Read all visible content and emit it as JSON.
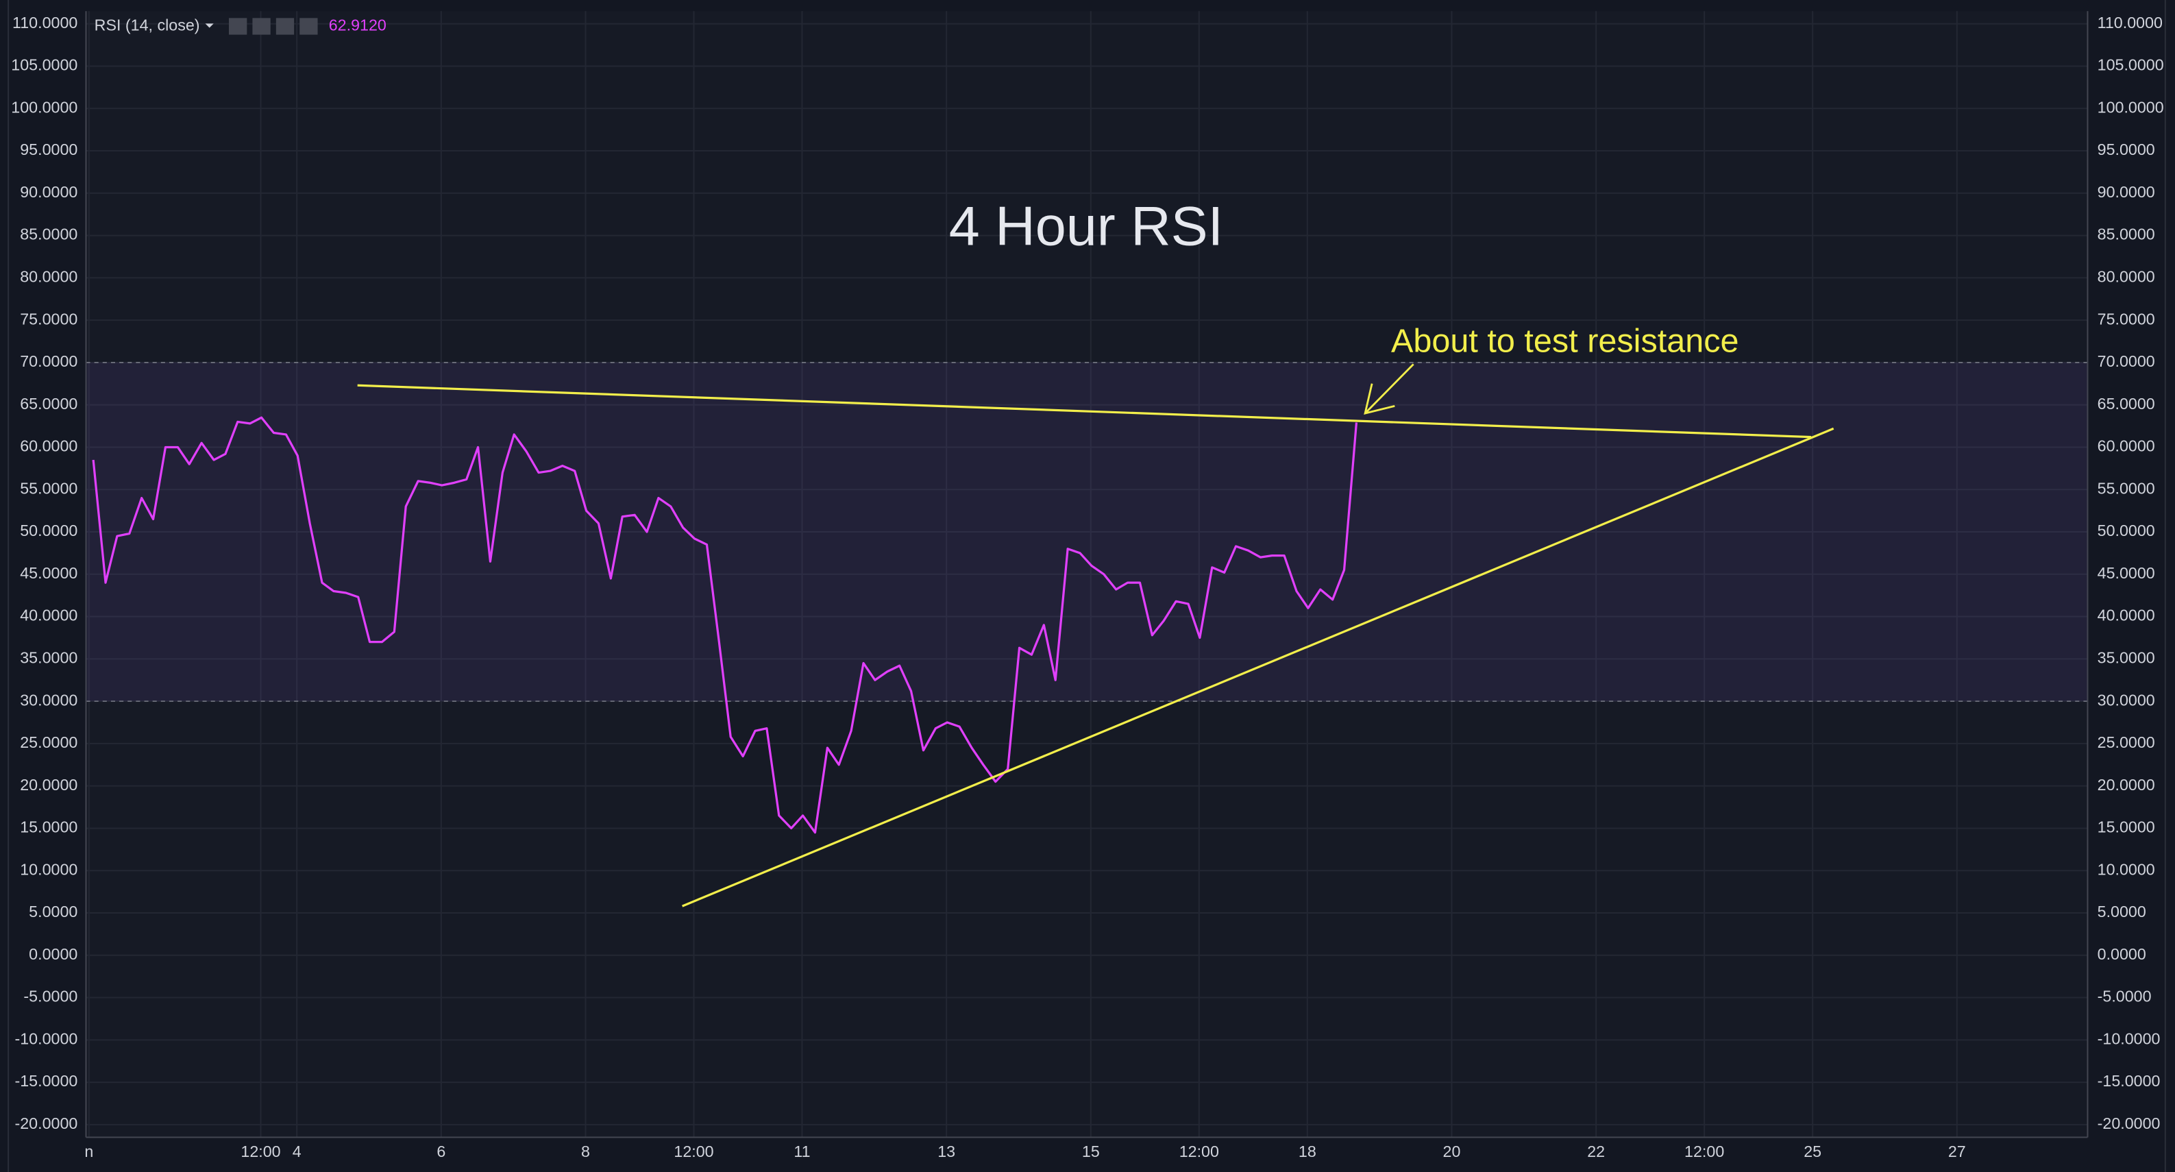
{
  "chart_data": {
    "type": "line",
    "title": "4 Hour RSI",
    "legend_value": "62.9120",
    "series": [
      {
        "name": "RSI (14, close)",
        "color": "#e040fb",
        "x": [
          1.18,
          1.35,
          1.51,
          1.68,
          1.85,
          2.01,
          2.18,
          2.35,
          2.51,
          2.68,
          2.85,
          3.01,
          3.18,
          3.35,
          3.51,
          3.68,
          3.85,
          4.01,
          4.18,
          4.35,
          4.51,
          4.68,
          4.85,
          5.01,
          5.18,
          5.35,
          5.51,
          5.68,
          5.85,
          6.01,
          6.18,
          6.35,
          6.51,
          6.68,
          6.85,
          7.01,
          7.18,
          7.35,
          7.51,
          7.68,
          7.85,
          8.01,
          8.18,
          8.35,
          8.51,
          8.68,
          8.85,
          9.01,
          9.18,
          9.35,
          9.51,
          9.68,
          9.85,
          10.01,
          10.18,
          10.35,
          10.51,
          10.68,
          10.85,
          11.01,
          11.18,
          11.35,
          11.51,
          11.68,
          11.85,
          12.01,
          12.18,
          12.35,
          12.51,
          12.68,
          12.85,
          13.01,
          13.18,
          13.35,
          13.51,
          13.68,
          13.85,
          14.01,
          14.18,
          14.35,
          14.51,
          14.68,
          14.85,
          15.01,
          15.18,
          15.35,
          15.51,
          15.68,
          15.85,
          16.01,
          16.18,
          16.35,
          16.51,
          16.68,
          16.85,
          17.01,
          17.18,
          17.35,
          17.51,
          17.68,
          17.85,
          18.01,
          18.18,
          18.35,
          18.51,
          18.68
        ],
        "values": [
          58.5,
          44,
          49.5,
          49.8,
          54,
          51.5,
          60,
          60,
          58,
          60.5,
          58.5,
          59.2,
          63,
          62.8,
          63.5,
          61.7,
          61.5,
          59,
          51,
          44,
          43,
          42.8,
          42.3,
          37,
          37,
          38.2,
          53,
          56,
          55.8,
          55.5,
          55.8,
          56.2,
          60,
          46.5,
          57,
          61.5,
          59.5,
          57,
          57.2,
          57.8,
          57.2,
          52.5,
          51,
          44.5,
          51.8,
          52,
          50,
          54,
          53,
          50.5,
          49.2,
          48.5,
          37,
          25.8,
          23.5,
          26.5,
          26.8,
          16.5,
          15,
          16.5,
          14.5,
          24.5,
          22.5,
          26.5,
          34.5,
          32.5,
          33.5,
          34.2,
          31.2,
          24.2,
          26.8,
          27.5,
          27,
          24.5,
          22.5,
          20.5,
          22,
          36.3,
          35.5,
          39,
          32.5,
          48,
          47.5,
          46,
          45,
          43.2,
          44,
          44,
          37.8,
          39.5,
          41.8,
          41.5,
          37.5,
          45.8,
          45.2,
          48.3,
          47.8,
          47,
          47.2,
          47.2,
          43,
          41,
          43.2,
          42,
          45.5,
          62.912
        ]
      }
    ],
    "xlim": [
      1.079,
      28.81
    ],
    "xticks": [
      {
        "value": 1.12,
        "label": "n"
      },
      {
        "value": 3.5,
        "label": "12:00"
      },
      4,
      6,
      8,
      {
        "value": 9.5,
        "label": "12:00"
      },
      11,
      13,
      15,
      {
        "value": 16.5,
        "label": "12:00"
      },
      18,
      20,
      22,
      {
        "value": 23.5,
        "label": "12:00"
      },
      25,
      27
    ],
    "ylim": [
      -21.5,
      111.5
    ],
    "yticks": [
      {
        "value": 110,
        "label": "110.0000"
      },
      {
        "value": 105,
        "label": "105.0000"
      },
      {
        "value": 100,
        "label": "100.0000"
      },
      {
        "value": 95,
        "label": "95.0000"
      },
      {
        "value": 90,
        "label": "90.0000"
      },
      {
        "value": 85,
        "label": "85.0000"
      },
      {
        "value": 80,
        "label": "80.0000"
      },
      {
        "value": 75,
        "label": "75.0000"
      },
      {
        "value": 70,
        "label": "70.0000"
      },
      {
        "value": 65,
        "label": "65.0000"
      },
      {
        "value": 60,
        "label": "60.0000"
      },
      {
        "value": 55,
        "label": "55.0000"
      },
      {
        "value": 50,
        "label": "50.0000"
      },
      {
        "value": 45,
        "label": "45.0000"
      },
      {
        "value": 40,
        "label": "40.0000"
      },
      {
        "value": 35,
        "label": "35.0000"
      },
      {
        "value": 30,
        "label": "30.0000"
      },
      {
        "value": 25,
        "label": "25.0000"
      },
      {
        "value": 20,
        "label": "20.0000"
      },
      {
        "value": 15,
        "label": "15.0000"
      },
      {
        "value": 10,
        "label": "10.0000"
      },
      {
        "value": 5,
        "label": "5.0000"
      },
      {
        "value": 0,
        "label": "0.0000"
      },
      {
        "value": -5,
        "label": "-5.0000"
      },
      {
        "value": -10,
        "label": "-10.0000"
      },
      {
        "value": -15,
        "label": "-15.0000"
      },
      {
        "value": -20,
        "label": "-20.0000"
      }
    ],
    "grid": true,
    "band": {
      "upper": 70,
      "lower": 30,
      "color": "#7e57c2"
    },
    "trendlines": [
      {
        "x": [
          4.84,
          24.98
        ],
        "y": [
          67.3,
          61.2
        ]
      },
      {
        "x": [
          9.34,
          25.29
        ],
        "y": [
          5.8,
          62.2
        ]
      }
    ],
    "trendline_color": "#f2ee4b",
    "annotation": {
      "text": "About to test resistance",
      "x": 19.16,
      "y": 72.3,
      "arrow_from": [
        19.47,
        69.8
      ],
      "arrow_to": [
        18.8,
        64.0
      ]
    }
  }
}
